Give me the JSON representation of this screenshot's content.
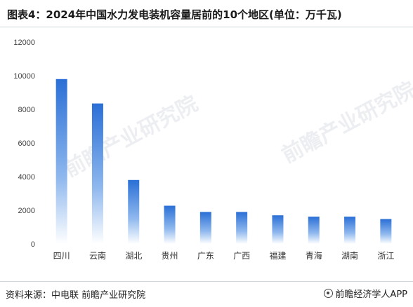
{
  "title": "图表4：2024年中国水力发电装机容量居前的10个地区(单位：万千瓦)",
  "source": "资料来源：中电联 前瞻产业研究院",
  "brand": "前瞻经济学人APP",
  "watermark": "前瞻产业研究院",
  "colors": {
    "bar_top": "#2a6fd6",
    "bar_bottom": "#ffffff",
    "grid": "#e6e6e6",
    "axis_text": "#444444"
  },
  "chart_data": {
    "type": "bar",
    "title": "图表4：2024年中国水力发电装机容量居前的10个地区(单位：万千瓦)",
    "xlabel": "",
    "ylabel": "",
    "categories": [
      "四川",
      "云南",
      "湖北",
      "贵州",
      "广东",
      "广西",
      "福建",
      "青海",
      "湖南",
      "浙江"
    ],
    "values": [
      9800,
      8350,
      3800,
      2270,
      1900,
      1900,
      1700,
      1620,
      1620,
      1480
    ],
    "ylim": [
      0,
      12000
    ],
    "yticks": [
      0,
      2000,
      4000,
      6000,
      8000,
      10000,
      12000
    ],
    "grid": false,
    "legend": "none"
  }
}
